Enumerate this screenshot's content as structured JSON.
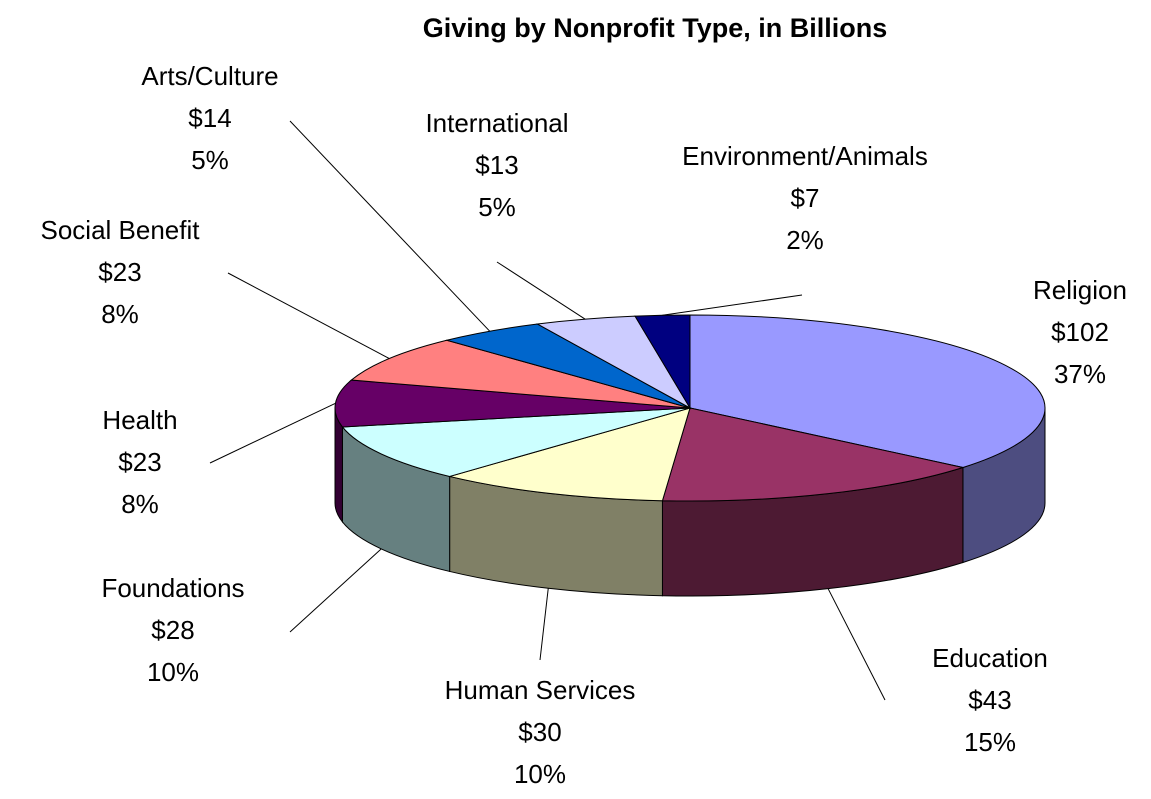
{
  "chart_data": {
    "type": "pie",
    "title": "Giving by Nonprofit Type, in Billions",
    "categories": [
      "Religion",
      "Education",
      "Human Services",
      "Foundations",
      "Health",
      "Social Benefit",
      "Arts/Culture",
      "International",
      "Environment/Animals"
    ],
    "values": [
      102,
      43,
      30,
      28,
      23,
      23,
      14,
      13,
      7
    ],
    "value_labels": [
      "$102",
      "$43",
      "$30",
      "$28",
      "$23",
      "$23",
      "$14",
      "$13",
      "$7"
    ],
    "percents": [
      37,
      15,
      10,
      10,
      8,
      8,
      5,
      5,
      2
    ],
    "percent_labels": [
      "37%",
      "15%",
      "10%",
      "10%",
      "8%",
      "8%",
      "5%",
      "5%",
      "2%"
    ],
    "colors": [
      "#9999FF",
      "#993366",
      "#FFFFCC",
      "#CCFFFF",
      "#660066",
      "#FF8080",
      "#0066CC",
      "#CCCCFF",
      "#000080"
    ]
  }
}
